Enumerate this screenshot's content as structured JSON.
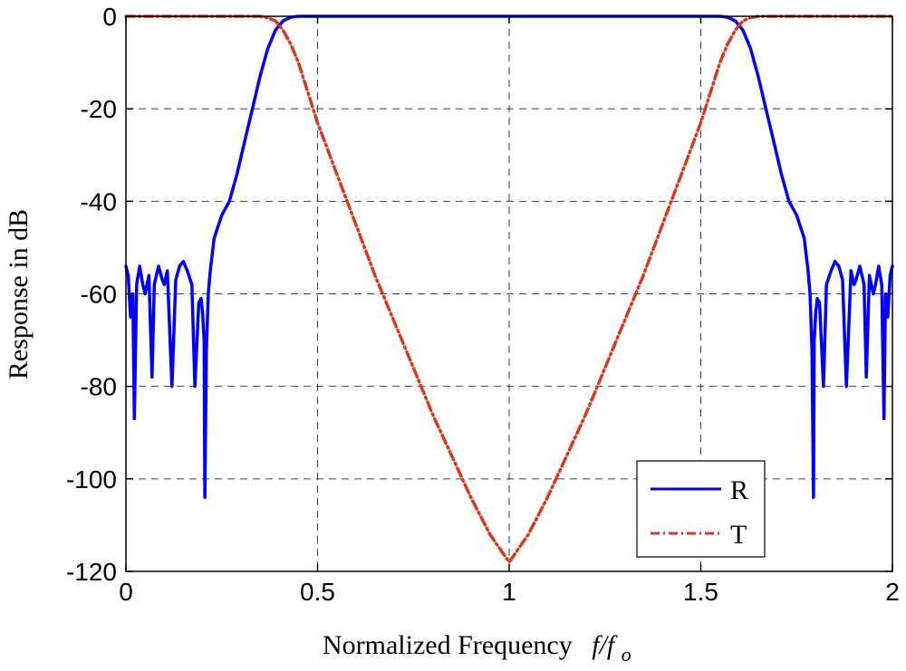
{
  "chart_data": {
    "type": "line",
    "xlabel": "Normalized Frequency",
    "xlabel_math": {
      "f": "f/f",
      "sub": "o"
    },
    "ylabel": "Response in dB",
    "xlim": [
      0,
      2
    ],
    "ylim": [
      -120,
      0
    ],
    "xticks": [
      0,
      0.5,
      1,
      1.5,
      2
    ],
    "xtick_labels": [
      "0",
      "0.5",
      "1",
      "1.5",
      "2"
    ],
    "yticks": [
      0,
      -20,
      -40,
      -60,
      -80,
      -100,
      -120
    ],
    "ytick_labels": [
      "0",
      "-20",
      "-40",
      "-60",
      "-80",
      "-100",
      "-120"
    ],
    "grid": true,
    "legend_position": "bottom-right",
    "series": [
      {
        "name": "R",
        "color": "#0000ff",
        "style": "solid",
        "points": [
          [
            0.0,
            -54
          ],
          [
            0.006,
            -56
          ],
          [
            0.012,
            -65
          ],
          [
            0.018,
            -60
          ],
          [
            0.022,
            -87
          ],
          [
            0.028,
            -58
          ],
          [
            0.036,
            -54
          ],
          [
            0.044,
            -58
          ],
          [
            0.05,
            -60
          ],
          [
            0.06,
            -56
          ],
          [
            0.068,
            -78
          ],
          [
            0.074,
            -58
          ],
          [
            0.085,
            -54
          ],
          [
            0.095,
            -57
          ],
          [
            0.1,
            -58
          ],
          [
            0.108,
            -55
          ],
          [
            0.12,
            -80
          ],
          [
            0.13,
            -57
          ],
          [
            0.14,
            -54
          ],
          [
            0.15,
            -53
          ],
          [
            0.16,
            -55
          ],
          [
            0.172,
            -58
          ],
          [
            0.18,
            -80
          ],
          [
            0.19,
            -62
          ],
          [
            0.196,
            -61
          ],
          [
            0.2,
            -64
          ],
          [
            0.204,
            -70
          ],
          [
            0.206,
            -104
          ],
          [
            0.21,
            -72
          ],
          [
            0.215,
            -60
          ],
          [
            0.22,
            -55
          ],
          [
            0.23,
            -48
          ],
          [
            0.25,
            -43
          ],
          [
            0.27,
            -40
          ],
          [
            0.29,
            -34
          ],
          [
            0.31,
            -27
          ],
          [
            0.33,
            -20
          ],
          [
            0.35,
            -13
          ],
          [
            0.37,
            -7
          ],
          [
            0.39,
            -3
          ],
          [
            0.41,
            -1
          ],
          [
            0.43,
            -0.2
          ],
          [
            0.45,
            0
          ],
          [
            1.55,
            0
          ],
          [
            1.57,
            -0.2
          ],
          [
            1.59,
            -1
          ],
          [
            1.61,
            -3
          ],
          [
            1.63,
            -7
          ],
          [
            1.65,
            -13
          ],
          [
            1.67,
            -20
          ],
          [
            1.69,
            -27
          ],
          [
            1.71,
            -34
          ],
          [
            1.73,
            -40
          ],
          [
            1.75,
            -43
          ],
          [
            1.77,
            -48
          ],
          [
            1.78,
            -55
          ],
          [
            1.785,
            -60
          ],
          [
            1.79,
            -72
          ],
          [
            1.794,
            -104
          ],
          [
            1.796,
            -70
          ],
          [
            1.8,
            -64
          ],
          [
            1.804,
            -61
          ],
          [
            1.81,
            -62
          ],
          [
            1.82,
            -80
          ],
          [
            1.828,
            -58
          ],
          [
            1.84,
            -55
          ],
          [
            1.85,
            -53
          ],
          [
            1.86,
            -54
          ],
          [
            1.87,
            -57
          ],
          [
            1.88,
            -80
          ],
          [
            1.892,
            -55
          ],
          [
            1.9,
            -58
          ],
          [
            1.905,
            -57
          ],
          [
            1.915,
            -54
          ],
          [
            1.926,
            -58
          ],
          [
            1.932,
            -78
          ],
          [
            1.94,
            -56
          ],
          [
            1.95,
            -60
          ],
          [
            1.956,
            -58
          ],
          [
            1.964,
            -54
          ],
          [
            1.972,
            -58
          ],
          [
            1.978,
            -87
          ],
          [
            1.982,
            -60
          ],
          [
            1.988,
            -65
          ],
          [
            1.994,
            -56
          ],
          [
            2.0,
            -54
          ]
        ]
      },
      {
        "name": "T",
        "color": "#d93a1b",
        "style": "dash-dot",
        "points": [
          [
            0.0,
            0
          ],
          [
            0.35,
            0
          ],
          [
            0.37,
            -0.3
          ],
          [
            0.39,
            -1
          ],
          [
            0.41,
            -3
          ],
          [
            0.43,
            -6
          ],
          [
            0.45,
            -10
          ],
          [
            0.5,
            -23
          ],
          [
            0.55,
            -34
          ],
          [
            0.6,
            -45
          ],
          [
            0.65,
            -56
          ],
          [
            0.7,
            -66
          ],
          [
            0.75,
            -76
          ],
          [
            0.8,
            -86
          ],
          [
            0.85,
            -95
          ],
          [
            0.9,
            -104
          ],
          [
            0.95,
            -112
          ],
          [
            1.0,
            -118
          ],
          [
            1.05,
            -112
          ],
          [
            1.1,
            -104
          ],
          [
            1.15,
            -95
          ],
          [
            1.2,
            -86
          ],
          [
            1.25,
            -76
          ],
          [
            1.3,
            -66
          ],
          [
            1.35,
            -56
          ],
          [
            1.4,
            -45
          ],
          [
            1.45,
            -34
          ],
          [
            1.5,
            -23
          ],
          [
            1.55,
            -10
          ],
          [
            1.57,
            -6
          ],
          [
            1.59,
            -3
          ],
          [
            1.61,
            -1
          ],
          [
            1.63,
            -0.3
          ],
          [
            1.65,
            0
          ],
          [
            2.0,
            0
          ]
        ]
      }
    ]
  }
}
